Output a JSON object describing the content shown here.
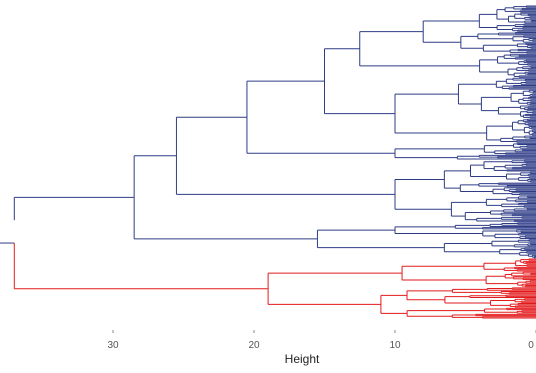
{
  "chart_data": {
    "type": "dendrogram",
    "orientation": "horizontal",
    "xlabel": "Height",
    "x_ticks": [
      30,
      20,
      10,
      0
    ],
    "xlim": [
      38,
      0
    ],
    "leaf_count": 260,
    "clusters": [
      {
        "color": "#2e3c86",
        "leaves": 210
      },
      {
        "color": "#e31a1c",
        "leaves": 50
      }
    ],
    "merge_heights_top_level": [
      37.0,
      28.5,
      25.5,
      20.5,
      19.0,
      15.0,
      12.5,
      10.0
    ]
  }
}
